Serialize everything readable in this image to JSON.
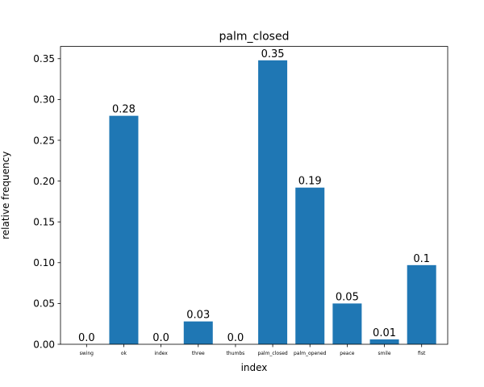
{
  "chart_data": {
    "type": "bar",
    "title": "palm_closed",
    "xlabel": "index",
    "ylabel": "relative frequency",
    "categories": [
      "swing",
      "ok",
      "index",
      "three",
      "thumbs",
      "palm_closed",
      "palm_opened",
      "peace",
      "smile",
      "fist"
    ],
    "values": [
      0.0,
      0.28,
      0.0,
      0.028,
      0.0,
      0.348,
      0.192,
      0.05,
      0.006,
      0.097
    ],
    "data_labels": [
      "0.0",
      "0.28",
      "0.0",
      "0.03",
      "0.0",
      "0.35",
      "0.19",
      "0.05",
      "0.01",
      "0.1"
    ],
    "ylim": [
      0,
      0.365
    ],
    "yticks": [
      0.0,
      0.05,
      0.1,
      0.15,
      0.2,
      0.25,
      0.3,
      0.35
    ],
    "ytick_labels": [
      "0.00",
      "0.05",
      "0.10",
      "0.15",
      "0.20",
      "0.25",
      "0.30",
      "0.35"
    ],
    "grid": false,
    "bar_color": "#1f77b4"
  }
}
